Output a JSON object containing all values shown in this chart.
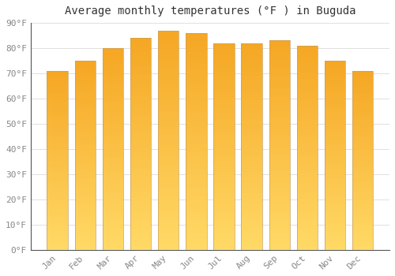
{
  "title": "Average monthly temperatures (°F ) in Buguda",
  "months": [
    "Jan",
    "Feb",
    "Mar",
    "Apr",
    "May",
    "Jun",
    "Jul",
    "Aug",
    "Sep",
    "Oct",
    "Nov",
    "Dec"
  ],
  "values": [
    71,
    75,
    80,
    84,
    87,
    86,
    82,
    82,
    83,
    81,
    75,
    71
  ],
  "bar_color_top": "#F5A623",
  "bar_color_bottom": "#FFD966",
  "bar_edge_color": "#C8A060",
  "background_color": "#FFFFFF",
  "grid_color": "#E0E0E0",
  "ylim": [
    0,
    90
  ],
  "yticks": [
    0,
    10,
    20,
    30,
    40,
    50,
    60,
    70,
    80,
    90
  ],
  "ytick_labels": [
    "0°F",
    "10°F",
    "20°F",
    "30°F",
    "40°F",
    "50°F",
    "60°F",
    "70°F",
    "80°F",
    "90°F"
  ],
  "title_fontsize": 10,
  "tick_fontsize": 8,
  "font_family": "monospace"
}
